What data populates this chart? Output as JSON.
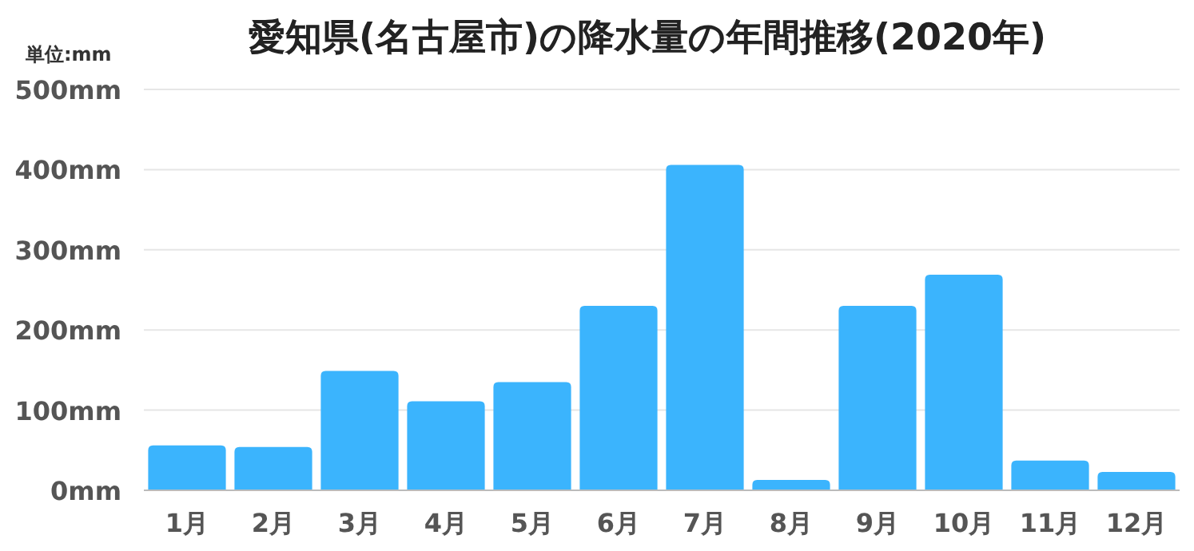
{
  "chart_data": {
    "type": "bar",
    "title": "愛知県(名古屋市)の降水量の年間推移(2020年)",
    "ylabel": "単位:mm",
    "categories": [
      "1月",
      "2月",
      "3月",
      "4月",
      "5月",
      "6月",
      "7月",
      "8月",
      "9月",
      "10月",
      "11月",
      "12月"
    ],
    "values": [
      56,
      54,
      149,
      111,
      135,
      230,
      406,
      13,
      230,
      269,
      37,
      23
    ],
    "color": "#3bb4fd",
    "ylim": [
      0,
      500
    ],
    "yticks": [
      {
        "value": 0,
        "label": "0mm"
      },
      {
        "value": 100,
        "label": "100mm"
      },
      {
        "value": 200,
        "label": "200mm"
      },
      {
        "value": 300,
        "label": "300mm"
      },
      {
        "value": 400,
        "label": "400mm"
      },
      {
        "value": 500,
        "label": "500mm"
      }
    ],
    "grid": "y"
  }
}
